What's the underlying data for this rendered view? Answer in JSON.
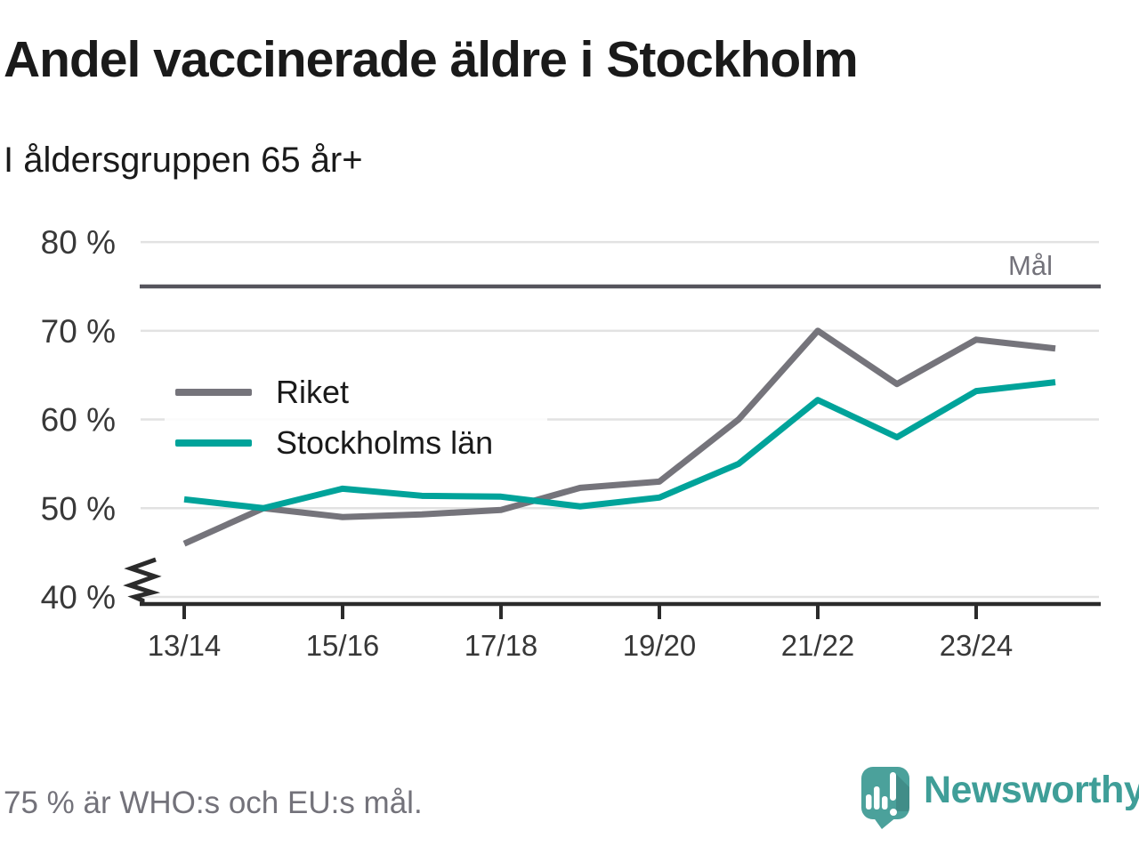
{
  "page": {
    "title": "Andel vaccinerade äldre i Stockholm",
    "subtitle": "I åldersgruppen 65 år+",
    "footnote": "75 % är WHO:s och EU:s mål.",
    "brand": "Newsworthy"
  },
  "colors": {
    "title": "#1a1a1a",
    "subtitle": "#1a1a1a",
    "axis": "#2b2b2b",
    "grid": "#e2e2e2",
    "tick_label": "#383838",
    "target_line": "#55545c",
    "target_label": "#73727a",
    "footnote": "#73727a",
    "brand": "#3f9e98",
    "brand_bubble": "#4ba19b"
  },
  "chart_data": {
    "type": "line",
    "title": "Andel vaccinerade äldre i Stockholm",
    "subtitle": "I åldersgruppen 65 år+",
    "x_categories": [
      "13/14",
      "14/15",
      "15/16",
      "16/17",
      "17/18",
      "18/19",
      "19/20",
      "20/21",
      "21/22",
      "22/23",
      "23/24",
      "24/25"
    ],
    "x_tick_labels": [
      "13/14",
      "15/16",
      "17/18",
      "19/20",
      "21/22",
      "23/24"
    ],
    "yticks": [
      40,
      50,
      60,
      70,
      80
    ],
    "ylim": [
      40,
      80
    ],
    "y_unit": "%",
    "y_axis_break": true,
    "grid": true,
    "legend_position": "inside-top-left",
    "series": [
      {
        "name": "Riket",
        "color": "#75747b",
        "values": [
          46,
          50,
          49,
          49.3,
          49.8,
          52.3,
          53,
          60,
          70,
          64,
          69,
          68
        ]
      },
      {
        "name": "Stockholms län",
        "color": "#00a39a",
        "values": [
          51,
          50,
          52.2,
          51.4,
          51.3,
          50.2,
          51.2,
          55,
          62.2,
          58,
          63.2,
          64.2
        ]
      }
    ],
    "target_line": {
      "label": "Mål",
      "value": 75
    },
    "annotation": "75 % är WHO:s och EU:s mål."
  }
}
